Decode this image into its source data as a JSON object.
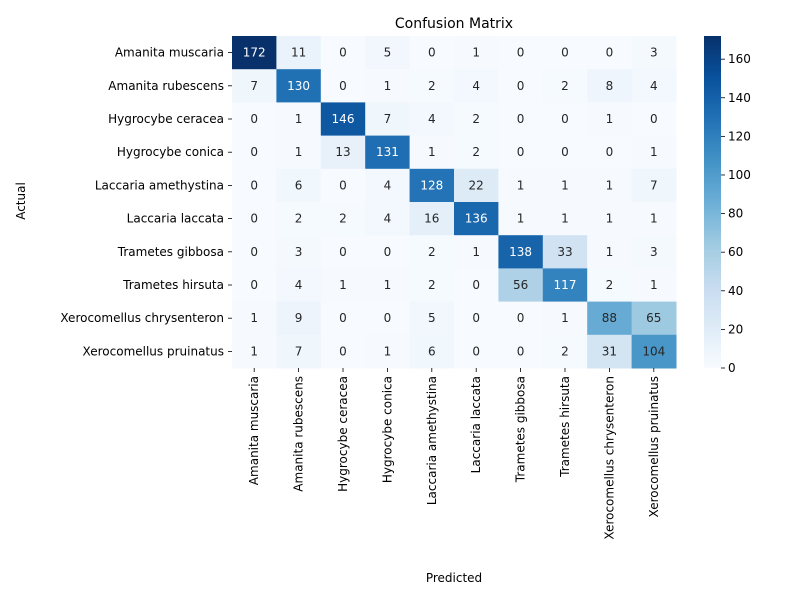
{
  "chart_data": {
    "type": "heatmap",
    "title": "Confusion Matrix",
    "xlabel": "Predicted",
    "ylabel": "Actual",
    "categories": [
      "Amanita muscaria",
      "Amanita rubescens",
      "Hygrocybe ceracea",
      "Hygrocybe conica",
      "Laccaria amethystina",
      "Laccaria laccata",
      "Trametes gibbosa",
      "Trametes hirsuta",
      "Xerocomellus chrysenteron",
      "Xerocomellus pruinatus"
    ],
    "values": [
      [
        172,
        11,
        0,
        5,
        0,
        1,
        0,
        0,
        0,
        3
      ],
      [
        7,
        130,
        0,
        1,
        2,
        4,
        0,
        2,
        8,
        4
      ],
      [
        0,
        1,
        146,
        7,
        4,
        2,
        0,
        0,
        1,
        0
      ],
      [
        0,
        1,
        13,
        131,
        1,
        2,
        0,
        0,
        0,
        1
      ],
      [
        0,
        6,
        0,
        4,
        128,
        22,
        1,
        1,
        1,
        7
      ],
      [
        0,
        2,
        2,
        4,
        16,
        136,
        1,
        1,
        1,
        1
      ],
      [
        0,
        3,
        0,
        0,
        2,
        1,
        138,
        33,
        1,
        3
      ],
      [
        0,
        4,
        1,
        1,
        2,
        0,
        56,
        117,
        2,
        1
      ],
      [
        1,
        9,
        0,
        0,
        5,
        0,
        0,
        1,
        88,
        65
      ],
      [
        1,
        7,
        0,
        1,
        6,
        0,
        0,
        2,
        31,
        104
      ]
    ],
    "colorbar": {
      "ticks": [
        0,
        20,
        40,
        60,
        80,
        100,
        120,
        140,
        160
      ],
      "range": [
        0,
        172
      ],
      "colormap": "Blues"
    }
  }
}
